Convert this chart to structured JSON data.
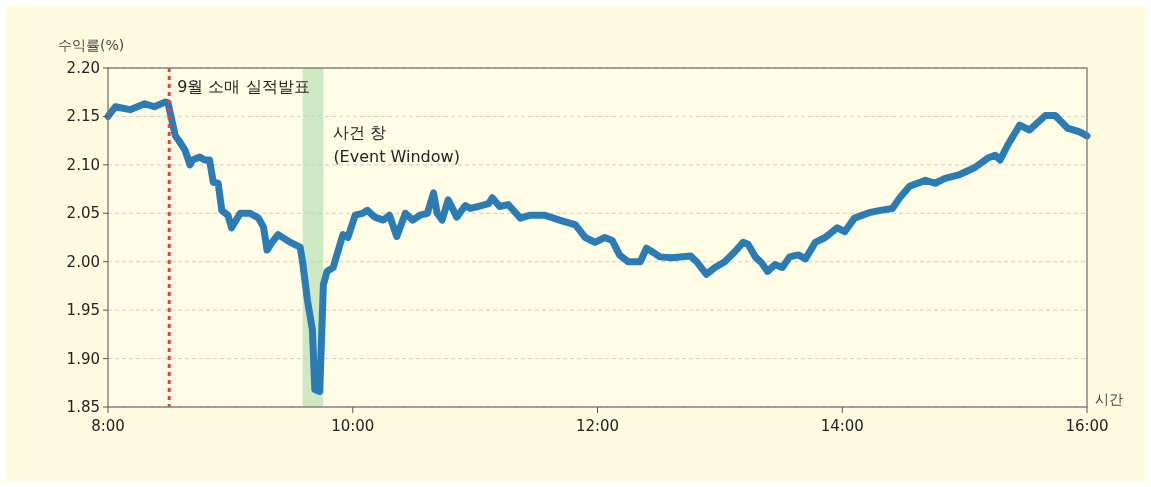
{
  "chart_data": {
    "type": "line",
    "xlabel": "시간",
    "ylabel": "수익률(%)",
    "grid": "y",
    "xlim": [
      8,
      16
    ],
    "ylim": [
      1.85,
      2.2
    ],
    "xticks": [
      {
        "value": 8,
        "label": "8:00"
      },
      {
        "value": 10,
        "label": "10:00"
      },
      {
        "value": 12,
        "label": "12:00"
      },
      {
        "value": 14,
        "label": "14:00"
      },
      {
        "value": 16,
        "label": "16:00"
      }
    ],
    "yticks": [
      1.85,
      {
        "value": 1.9,
        "label": "1.90"
      },
      1.95,
      {
        "value": 2.0,
        "label": "2.00"
      },
      2.05,
      {
        "value": 2.1,
        "label": "2.10"
      },
      2.15,
      {
        "value": 2.2,
        "label": "2.20"
      }
    ],
    "ref_lines": [
      {
        "axis": "x",
        "value": 8.5,
        "label": "9월 소매 실적발표",
        "color": "#e0443c",
        "line_style": "dotted"
      }
    ],
    "bands": [
      {
        "axis": "x",
        "from": 9.59,
        "to": 9.76,
        "label": "사건 창\n(Event Window)",
        "color": "#cde8c2"
      }
    ],
    "series": [
      {
        "color": "#2b7bb4",
        "x": [
          8.0,
          8.06,
          8.18,
          8.3,
          8.38,
          8.47,
          8.49,
          8.55,
          8.59,
          8.63,
          8.67,
          8.69,
          8.75,
          8.79,
          8.83,
          8.86,
          8.9,
          8.93,
          8.98,
          9.01,
          9.08,
          9.16,
          9.23,
          9.27,
          9.3,
          9.34,
          9.39,
          9.49,
          9.57,
          9.59,
          9.63,
          9.67,
          9.69,
          9.73,
          9.76,
          9.79,
          9.84,
          9.87,
          9.92,
          9.96,
          10.02,
          10.08,
          10.12,
          10.18,
          10.25,
          10.3,
          10.36,
          10.43,
          10.49,
          10.55,
          10.61,
          10.66,
          10.69,
          10.73,
          10.78,
          10.85,
          10.92,
          10.96,
          11.02,
          11.11,
          11.14,
          11.2,
          11.27,
          11.37,
          11.45,
          11.57,
          11.69,
          11.82,
          11.9,
          11.98,
          12.06,
          12.12,
          12.18,
          12.25,
          12.35,
          12.4,
          12.45,
          12.51,
          12.61,
          12.76,
          12.81,
          12.89,
          12.96,
          13.04,
          13.12,
          13.19,
          13.23,
          13.29,
          13.34,
          13.39,
          13.45,
          13.51,
          13.57,
          13.64,
          13.7,
          13.78,
          13.86,
          13.96,
          14.02,
          14.1,
          14.23,
          14.31,
          14.41,
          14.47,
          14.55,
          14.68,
          14.76,
          14.84,
          14.96,
          15.08,
          15.19,
          15.25,
          15.29,
          15.35,
          15.45,
          15.53,
          15.66,
          15.74,
          15.84,
          15.94,
          16.0
        ],
        "values": [
          2.15,
          2.16,
          2.157,
          2.163,
          2.16,
          2.165,
          2.164,
          2.13,
          2.123,
          2.115,
          2.1,
          2.105,
          2.108,
          2.105,
          2.105,
          2.082,
          2.081,
          2.053,
          2.048,
          2.035,
          2.05,
          2.05,
          2.045,
          2.036,
          2.012,
          2.02,
          2.028,
          2.02,
          2.015,
          2.0,
          1.96,
          1.93,
          1.868,
          1.866,
          1.976,
          1.99,
          1.994,
          2.007,
          2.028,
          2.025,
          2.048,
          2.05,
          2.053,
          2.046,
          2.043,
          2.048,
          2.026,
          2.05,
          2.043,
          2.048,
          2.05,
          2.071,
          2.05,
          2.043,
          2.064,
          2.046,
          2.058,
          2.055,
          2.057,
          2.06,
          2.066,
          2.057,
          2.059,
          2.045,
          2.048,
          2.048,
          2.043,
          2.038,
          2.025,
          2.02,
          2.025,
          2.022,
          2.007,
          2.0,
          2.0,
          2.014,
          2.01,
          2.005,
          2.004,
          2.006,
          2.0,
          1.987,
          1.994,
          2.0,
          2.01,
          2.02,
          2.018,
          2.005,
          1.999,
          1.99,
          1.997,
          1.994,
          2.005,
          2.007,
          2.003,
          2.02,
          2.025,
          2.035,
          2.031,
          2.045,
          2.051,
          2.053,
          2.055,
          2.066,
          2.078,
          2.084,
          2.081,
          2.086,
          2.09,
          2.097,
          2.107,
          2.11,
          2.105,
          2.12,
          2.141,
          2.136,
          2.151,
          2.151,
          2.138,
          2.134,
          2.13
        ]
      }
    ]
  }
}
